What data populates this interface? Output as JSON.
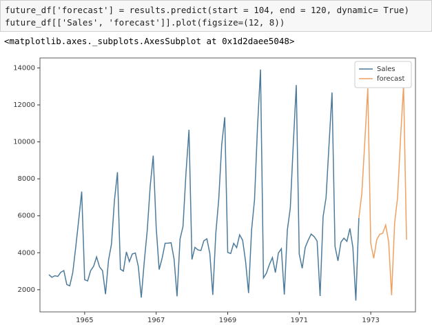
{
  "code": [
    "future_df['forecast'] = results.predict(start = 104, end = 120, dynamic= True)",
    "future_df[['Sales', 'forecast']].plot(figsize=(12, 8))"
  ],
  "output": "<matplotlib.axes._subplots.AxesSubplot at 0x1d2daee5048>",
  "chart_data": {
    "type": "line",
    "xlim": [
      1963.75,
      1974.25
    ],
    "xticks": [
      1965,
      1967,
      1969,
      1971,
      1973
    ],
    "ylim": [
      800,
      14540
    ],
    "yticks": [
      2000,
      4000,
      6000,
      8000,
      10000,
      12000,
      14000
    ],
    "grid": false,
    "legend": "upper-right",
    "series": [
      {
        "name": "Sales",
        "color": "#4c7a9b",
        "x": [
          1964.0,
          1964.083,
          1964.167,
          1964.25,
          1964.333,
          1964.417,
          1964.5,
          1964.583,
          1964.667,
          1964.75,
          1964.833,
          1964.917,
          1965.0,
          1965.083,
          1965.167,
          1965.25,
          1965.333,
          1965.417,
          1965.5,
          1965.583,
          1965.667,
          1965.75,
          1965.833,
          1965.917,
          1966.0,
          1966.083,
          1966.167,
          1966.25,
          1966.333,
          1966.417,
          1966.5,
          1966.583,
          1966.667,
          1966.75,
          1966.833,
          1966.917,
          1967.0,
          1967.083,
          1967.167,
          1967.25,
          1967.333,
          1967.417,
          1967.5,
          1967.583,
          1967.667,
          1967.75,
          1967.833,
          1967.917,
          1968.0,
          1968.083,
          1968.167,
          1968.25,
          1968.333,
          1968.417,
          1968.5,
          1968.583,
          1968.667,
          1968.75,
          1968.833,
          1968.917,
          1969.0,
          1969.083,
          1969.167,
          1969.25,
          1969.333,
          1969.417,
          1969.5,
          1969.583,
          1969.667,
          1969.75,
          1969.833,
          1969.917,
          1970.0,
          1970.083,
          1970.167,
          1970.25,
          1970.333,
          1970.417,
          1970.5,
          1970.583,
          1970.667,
          1970.75,
          1970.833,
          1970.917,
          1971.0,
          1971.083,
          1971.167,
          1971.25,
          1971.333,
          1971.417,
          1971.5,
          1971.583,
          1971.667,
          1971.75,
          1971.833,
          1971.917,
          1972.0,
          1972.083,
          1972.167,
          1972.25,
          1972.333,
          1972.417,
          1972.5,
          1972.583,
          1972.667
        ],
        "values": [
          2815,
          2672,
          2755,
          2721,
          2946,
          3036,
          2282,
          2212,
          2922,
          4301,
          5764,
          7312,
          2541,
          2475,
          3031,
          3266,
          3776,
          3230,
          3028,
          1759,
          3595,
          4474,
          6838,
          8357,
          3113,
          3006,
          4047,
          3523,
          3937,
          3986,
          3260,
          1573,
          3528,
          5211,
          7614,
          9254,
          5375,
          3088,
          3718,
          4514,
          4520,
          4539,
          3663,
          1643,
          4739,
          5428,
          8314,
          10651,
          3633,
          4292,
          4154,
          4121,
          4647,
          4753,
          3965,
          1723,
          5048,
          6922,
          9858,
          11331,
          4016,
          3957,
          4510,
          4276,
          4968,
          4677,
          3523,
          1821,
          5222,
          6872,
          10803,
          13916,
          2639,
          2899,
          3370,
          3740,
          2927,
          3986,
          4217,
          1738,
          5221,
          6424,
          9842,
          13076,
          3934,
          3162,
          4286,
          4676,
          5010,
          4874,
          4633,
          1659,
          5951,
          6981,
          9851,
          12670,
          4348,
          3564,
          4577,
          4788,
          4618,
          5312,
          4298,
          1413,
          5877
        ]
      },
      {
        "name": "forecast",
        "color": "#f0a060",
        "x": [
          1972.667,
          1972.75,
          1972.833,
          1972.917,
          1973.0,
          1973.083,
          1973.167,
          1973.25,
          1973.333,
          1973.417,
          1973.5,
          1973.583,
          1973.667,
          1973.75,
          1973.833,
          1973.917,
          1974.0
        ],
        "values": [
          5880,
          7200,
          10000,
          12900,
          4500,
          3700,
          4700,
          5000,
          5050,
          5500,
          4600,
          1700,
          5600,
          7000,
          10200,
          13050,
          4700
        ]
      }
    ]
  }
}
